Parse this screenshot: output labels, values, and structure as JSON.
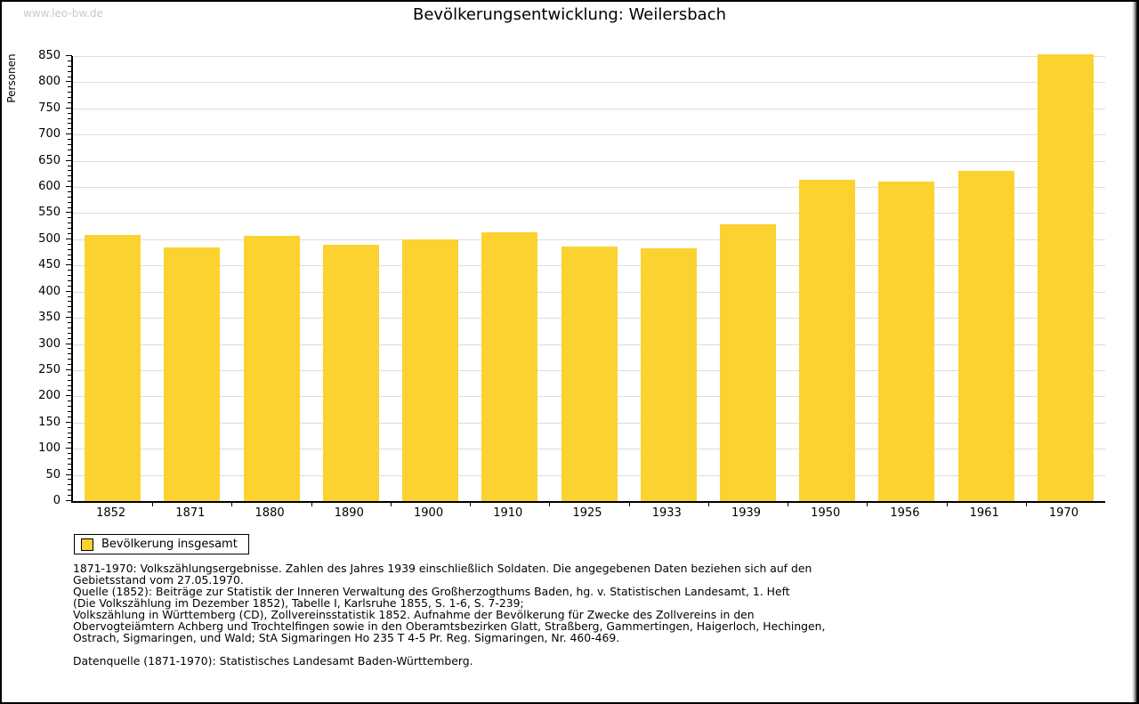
{
  "page": {
    "watermark": "www.leo-bw.de"
  },
  "chart_data": {
    "type": "bar",
    "title": "Bevölkerungsentwicklung: Weilersbach",
    "ylabel": "Personen",
    "xlabel": "",
    "categories": [
      "1852",
      "1871",
      "1880",
      "1890",
      "1900",
      "1910",
      "1925",
      "1933",
      "1939",
      "1950",
      "1956",
      "1961",
      "1970"
    ],
    "values": [
      508,
      484,
      507,
      490,
      500,
      513,
      487,
      482,
      529,
      613,
      611,
      630,
      853
    ],
    "ylim": [
      0,
      850
    ],
    "y_major_step": 50,
    "y_minor_step": 10,
    "grid": true,
    "legend_label": "Bevölkerung insgesamt",
    "legend_position": "bottom-left",
    "bar_color": "#FCD230"
  },
  "footnotes": {
    "lines": [
      "1871-1970: Volkszählungsergebnisse. Zahlen des Jahres 1939 einschließlich Soldaten. Die angegebenen Daten beziehen sich auf den",
      "Gebietsstand vom 27.05.1970.",
      "Quelle (1852): Beiträge zur Statistik der Inneren Verwaltung des Großherzogthums Baden, hg. v. Statistischen Landesamt, 1. Heft",
      "(Die Volkszählung im Dezember 1852), Tabelle I, Karlsruhe 1855, S. 1-6, S. 7-239;",
      "Volkszählung in Württemberg (CD), Zollvereinsstatistik 1852. Aufnahme der Bevölkerung für Zwecke des Zollvereins in den",
      "Obervogteiämtern Achberg und Trochtelfingen sowie in den Oberamtsbezirken Glatt, Straßberg, Gammertingen, Haigerloch, Hechingen,",
      "Ostrach, Sigmaringen, und Wald; StA Sigmaringen Ho 235 T 4-5 Pr. Reg. Sigmaringen, Nr. 460-469."
    ],
    "datasource": "Datenquelle (1871-1970): Statistisches Landesamt Baden-Württemberg."
  },
  "colors": {
    "bar": "#FCD230",
    "gridline": "#DDDDDD",
    "axis": "#000000",
    "watermark": "#C9C9C9"
  }
}
